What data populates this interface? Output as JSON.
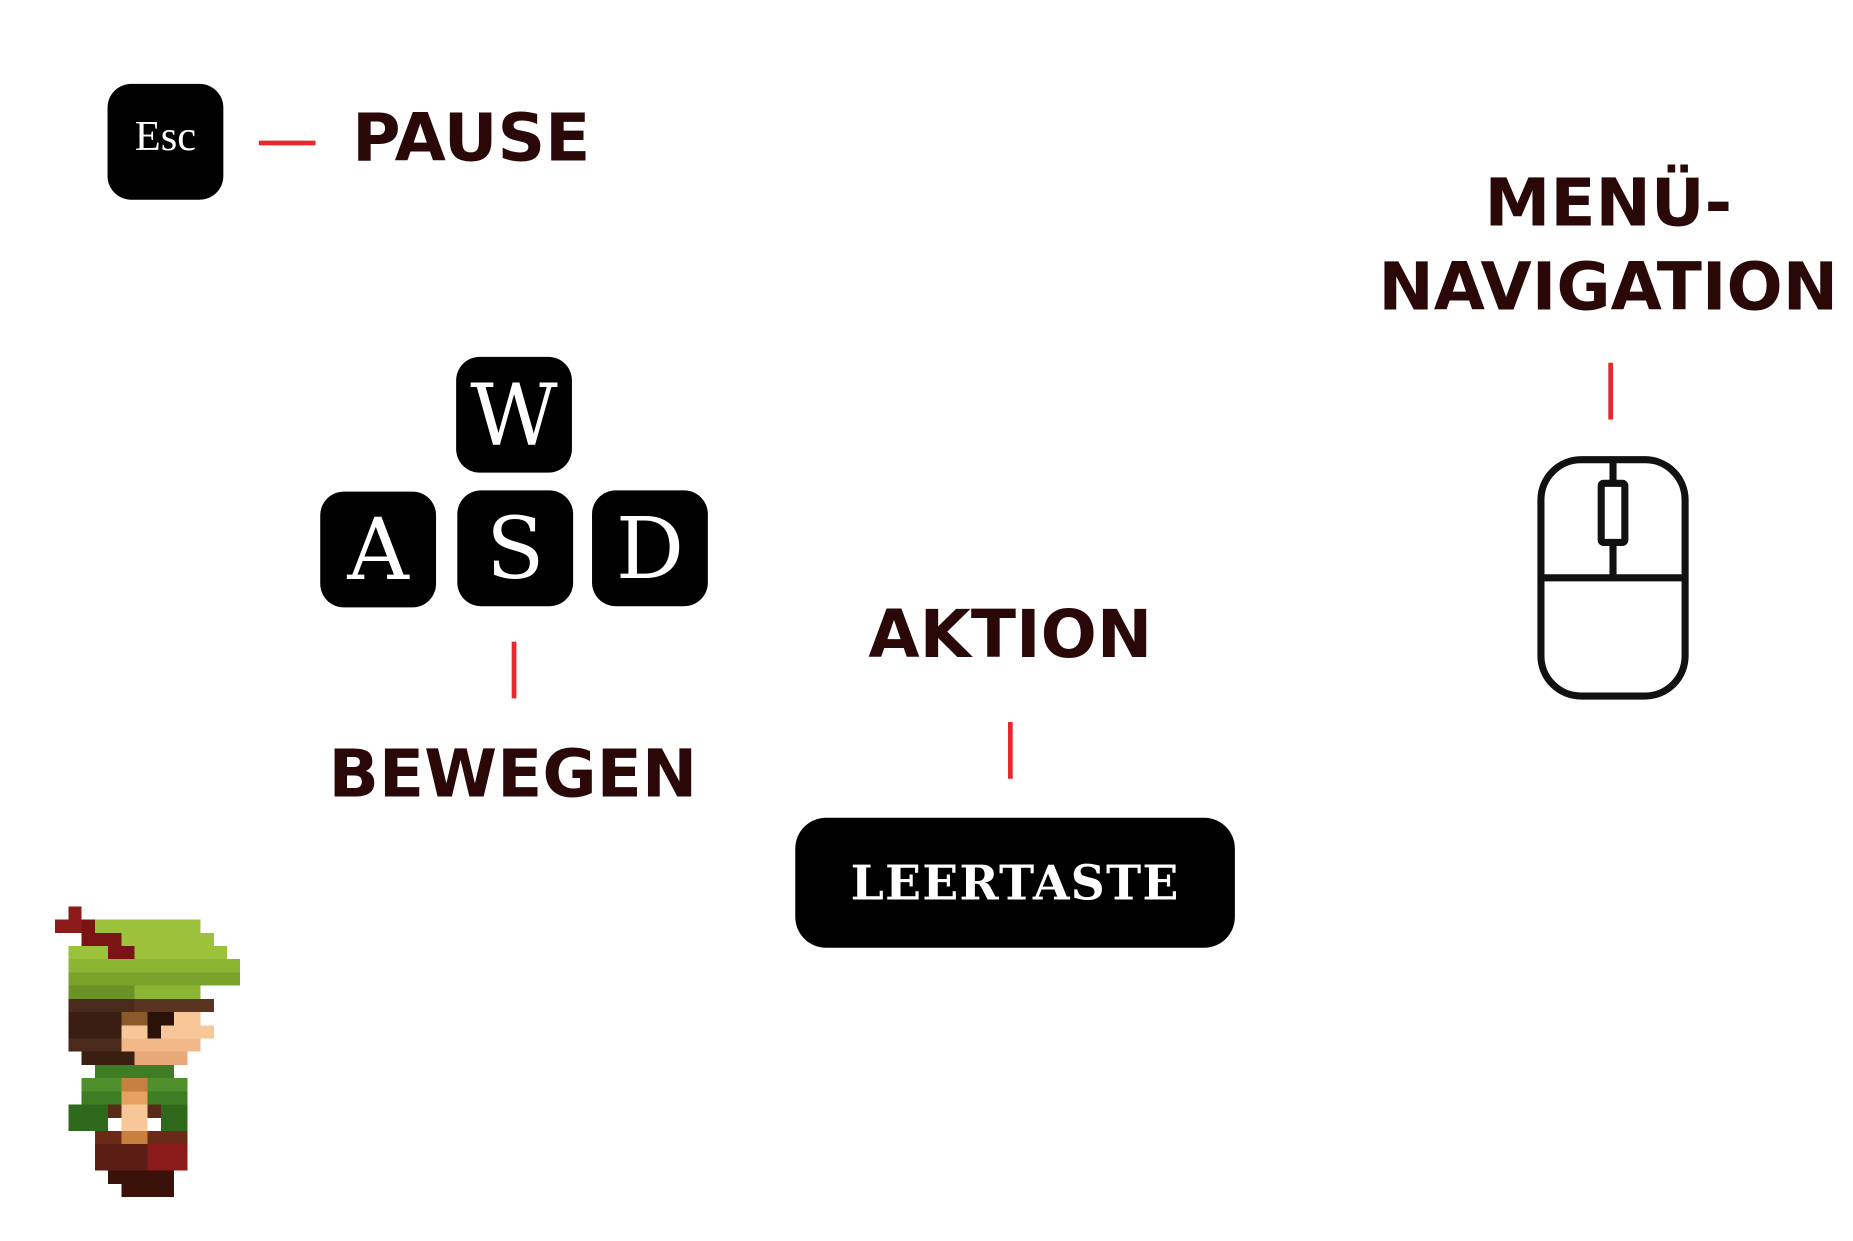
{
  "keys": {
    "esc": "Esc",
    "w": "W",
    "a": "A",
    "s": "S",
    "d": "D",
    "space": "LEERTASTE"
  },
  "labels": {
    "pause": "PAUSE",
    "move": "BEWEGEN",
    "action": "AKTION",
    "menu_line1": "MENÜ-",
    "menu_line2": "NAVIGATION"
  },
  "icons": {
    "mouse": "mouse-icon",
    "character": "hero-sprite"
  },
  "colors": {
    "key_background": "#000000",
    "key_text": "#ffffff",
    "label_text": "#2b0808",
    "connector": "#e8262b"
  }
}
